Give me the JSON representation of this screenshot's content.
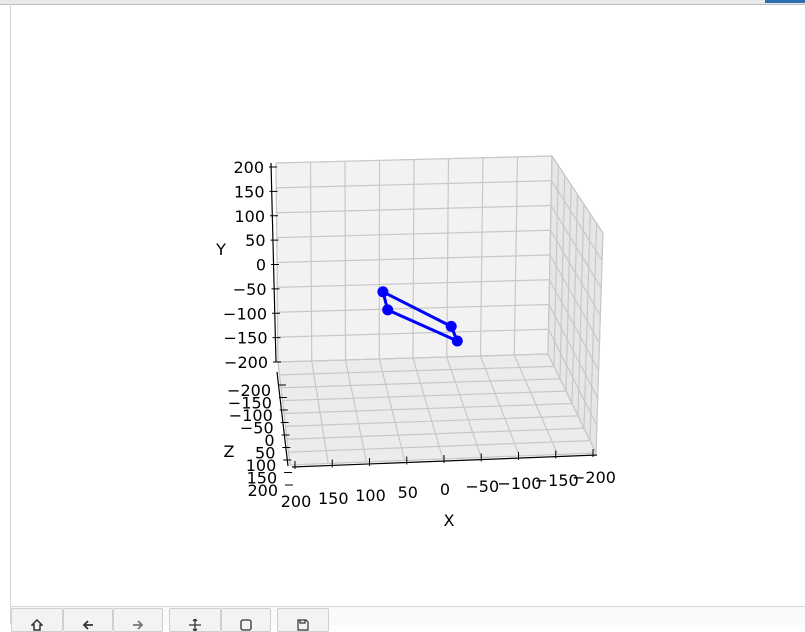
{
  "chart_data": {
    "type": "line3d",
    "title": "",
    "xlabel": "X",
    "ylabel": "Y",
    "zlabel": "Z",
    "xlim": [
      -200,
      200
    ],
    "ylim": [
      -200,
      200
    ],
    "zlim": [
      -200,
      200
    ],
    "x_ticks": [
      "200",
      "150",
      "100",
      "50",
      "0",
      "−50",
      "−100",
      "−150",
      "−200"
    ],
    "y_ticks": [
      "200",
      "150",
      "100",
      "50",
      "0",
      "−50",
      "−100",
      "−150",
      "−200"
    ],
    "z_ticks": [
      "−200",
      "−150",
      "−100",
      "−50",
      "0",
      "50",
      "100",
      "150",
      "200"
    ],
    "grid": true,
    "line_color": "#0000ff",
    "series": [
      {
        "points": [
          {
            "x": 70,
            "y": -28,
            "z": 0
          },
          {
            "x": 65,
            "y": -65,
            "z": 0
          },
          {
            "x": -25,
            "y": -102,
            "z": 0
          },
          {
            "x": -32,
            "y": -132,
            "z": 0
          }
        ]
      }
    ]
  },
  "toolbar": {
    "buttons": [
      {
        "icon": "home-icon"
      },
      {
        "icon": "back-arrow-icon"
      },
      {
        "icon": "forward-arrow-icon"
      },
      {
        "icon": "pan-icon"
      },
      {
        "icon": "zoom-icon"
      },
      {
        "icon": "save-icon"
      }
    ]
  }
}
